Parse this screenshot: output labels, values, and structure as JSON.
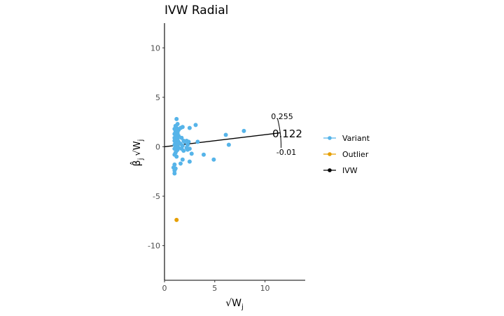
{
  "colors": {
    "variant": "#56B4E9",
    "outlier": "#E69F00",
    "ivw": "#000000",
    "axis": "#000000",
    "tick_text": "#4d4d4d"
  },
  "chart_data": {
    "type": "scatter",
    "title": "IVW Radial",
    "xlabel": "√W",
    "xlabel_sub": "j",
    "ylabel": "β̂",
    "ylabel_sub": "j",
    "ylabel_sqrt": "√W",
    "ylabel_sqrt_sub": "j",
    "xlim": [
      0,
      14
    ],
    "ylim": [
      -13.5,
      12.5
    ],
    "xticks": [
      0,
      5,
      10
    ],
    "xtick_labels": [
      "0",
      "5",
      "10"
    ],
    "yticks": [
      10,
      5,
      0,
      -5,
      -10
    ],
    "ytick_labels": [
      "10",
      "5",
      "0",
      "-5",
      "-10"
    ],
    "ivw_estimate": 0.122,
    "ivw_label": "0.122",
    "ci_upper_label": "0.255",
    "ci_lower_label": "-0.01",
    "arc_radius": 11.6,
    "ci_upper": 0.255,
    "ci_lower": -0.01,
    "legend": [
      {
        "name": "Variant",
        "color": "#56B4E9"
      },
      {
        "name": "Outlier",
        "color": "#E69F00"
      },
      {
        "name": "IVW",
        "color": "#000000"
      }
    ],
    "series": [
      {
        "name": "Variant",
        "color": "#56B4E9",
        "points": [
          [
            1.2,
            2.8
          ],
          [
            1.3,
            2.3
          ],
          [
            1.1,
            2.1
          ],
          [
            1.2,
            1.9
          ],
          [
            1.0,
            1.8
          ],
          [
            1.4,
            1.7
          ],
          [
            1.1,
            1.5
          ],
          [
            1.3,
            1.4
          ],
          [
            1.0,
            1.3
          ],
          [
            1.2,
            1.2
          ],
          [
            1.4,
            1.1
          ],
          [
            1.1,
            1.0
          ],
          [
            1.0,
            0.9
          ],
          [
            1.3,
            0.8
          ],
          [
            1.2,
            0.7
          ],
          [
            1.0,
            0.6
          ],
          [
            1.4,
            0.5
          ],
          [
            1.1,
            0.4
          ],
          [
            1.3,
            0.3
          ],
          [
            1.0,
            0.2
          ],
          [
            1.2,
            0.1
          ],
          [
            1.1,
            0.0
          ],
          [
            1.4,
            -0.1
          ],
          [
            1.0,
            -0.2
          ],
          [
            1.3,
            -0.3
          ],
          [
            1.2,
            -0.4
          ],
          [
            1.1,
            -0.6
          ],
          [
            1.0,
            -0.8
          ],
          [
            1.2,
            -1.0
          ],
          [
            1.6,
            1.9
          ],
          [
            1.8,
            2.0
          ],
          [
            1.7,
            0.9
          ],
          [
            1.9,
            0.6
          ],
          [
            1.6,
            0.3
          ],
          [
            1.8,
            0.1
          ],
          [
            2.0,
            0.5
          ],
          [
            1.7,
            -0.2
          ],
          [
            1.9,
            -0.4
          ],
          [
            1.6,
            -1.7
          ],
          [
            1.8,
            -1.3
          ],
          [
            2.2,
            0.6
          ],
          [
            2.4,
            0.5
          ],
          [
            2.3,
            0.2
          ],
          [
            2.2,
            -0.1
          ],
          [
            2.5,
            -0.2
          ],
          [
            2.3,
            -0.3
          ],
          [
            2.5,
            1.9
          ],
          [
            3.1,
            2.2
          ],
          [
            2.7,
            -0.7
          ],
          [
            2.5,
            -1.5
          ],
          [
            3.3,
            0.5
          ],
          [
            3.9,
            -0.8
          ],
          [
            4.9,
            -1.3
          ],
          [
            6.1,
            1.2
          ],
          [
            6.4,
            0.2
          ],
          [
            7.9,
            1.6
          ],
          [
            1.0,
            -1.8
          ],
          [
            0.9,
            -2.1
          ],
          [
            1.1,
            -2.2
          ],
          [
            1.0,
            -2.4
          ],
          [
            1.0,
            -2.7
          ]
        ]
      },
      {
        "name": "Outlier",
        "color": "#E69F00",
        "points": [
          [
            1.2,
            -7.4
          ]
        ]
      }
    ]
  }
}
